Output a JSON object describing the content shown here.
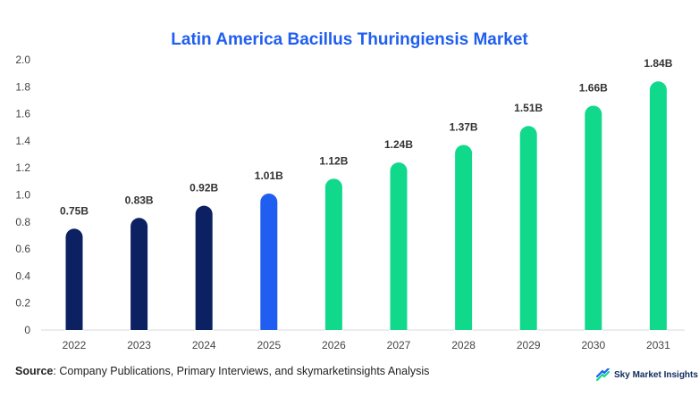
{
  "chart_data": {
    "type": "bar",
    "title": "Latin America Bacillus Thuringiensis Market",
    "categories": [
      "2022",
      "2023",
      "2024",
      "2025",
      "2026",
      "2027",
      "2028",
      "2029",
      "2030",
      "2031"
    ],
    "values": [
      0.75,
      0.83,
      0.92,
      1.01,
      1.12,
      1.24,
      1.37,
      1.51,
      1.66,
      1.84
    ],
    "data_labels": [
      "0.75B",
      "0.83B",
      "0.92B",
      "1.01B",
      "1.12B",
      "1.24B",
      "1.37B",
      "1.51B",
      "1.66B",
      "1.84B"
    ],
    "bar_colors": [
      "#0b2161",
      "#0b2161",
      "#0b2161",
      "#1f5ef0",
      "#11d98c",
      "#11d98c",
      "#11d98c",
      "#11d98c",
      "#11d98c",
      "#11d98c"
    ],
    "y_ticks": [
      "0",
      "0.2",
      "0.4",
      "0.6",
      "0.8",
      "1.0",
      "1.2",
      "1.4",
      "1.6",
      "1.8",
      "2.0"
    ],
    "ylim": [
      0,
      2.0
    ],
    "xlabel": "",
    "ylabel": "",
    "grid": false,
    "legend": "none"
  },
  "footer": {
    "source_label": "Source",
    "source_text": ": Company Publications, Primary Interviews, and skymarketinsights Analysis",
    "brand_name": "Sky Market Insights",
    "brand_icon": "sky-market-insights-logo-icon"
  },
  "colors": {
    "title": "#1f5ef0",
    "historical": "#0b2161",
    "base_year": "#1f5ef0",
    "forecast": "#11d98c"
  }
}
